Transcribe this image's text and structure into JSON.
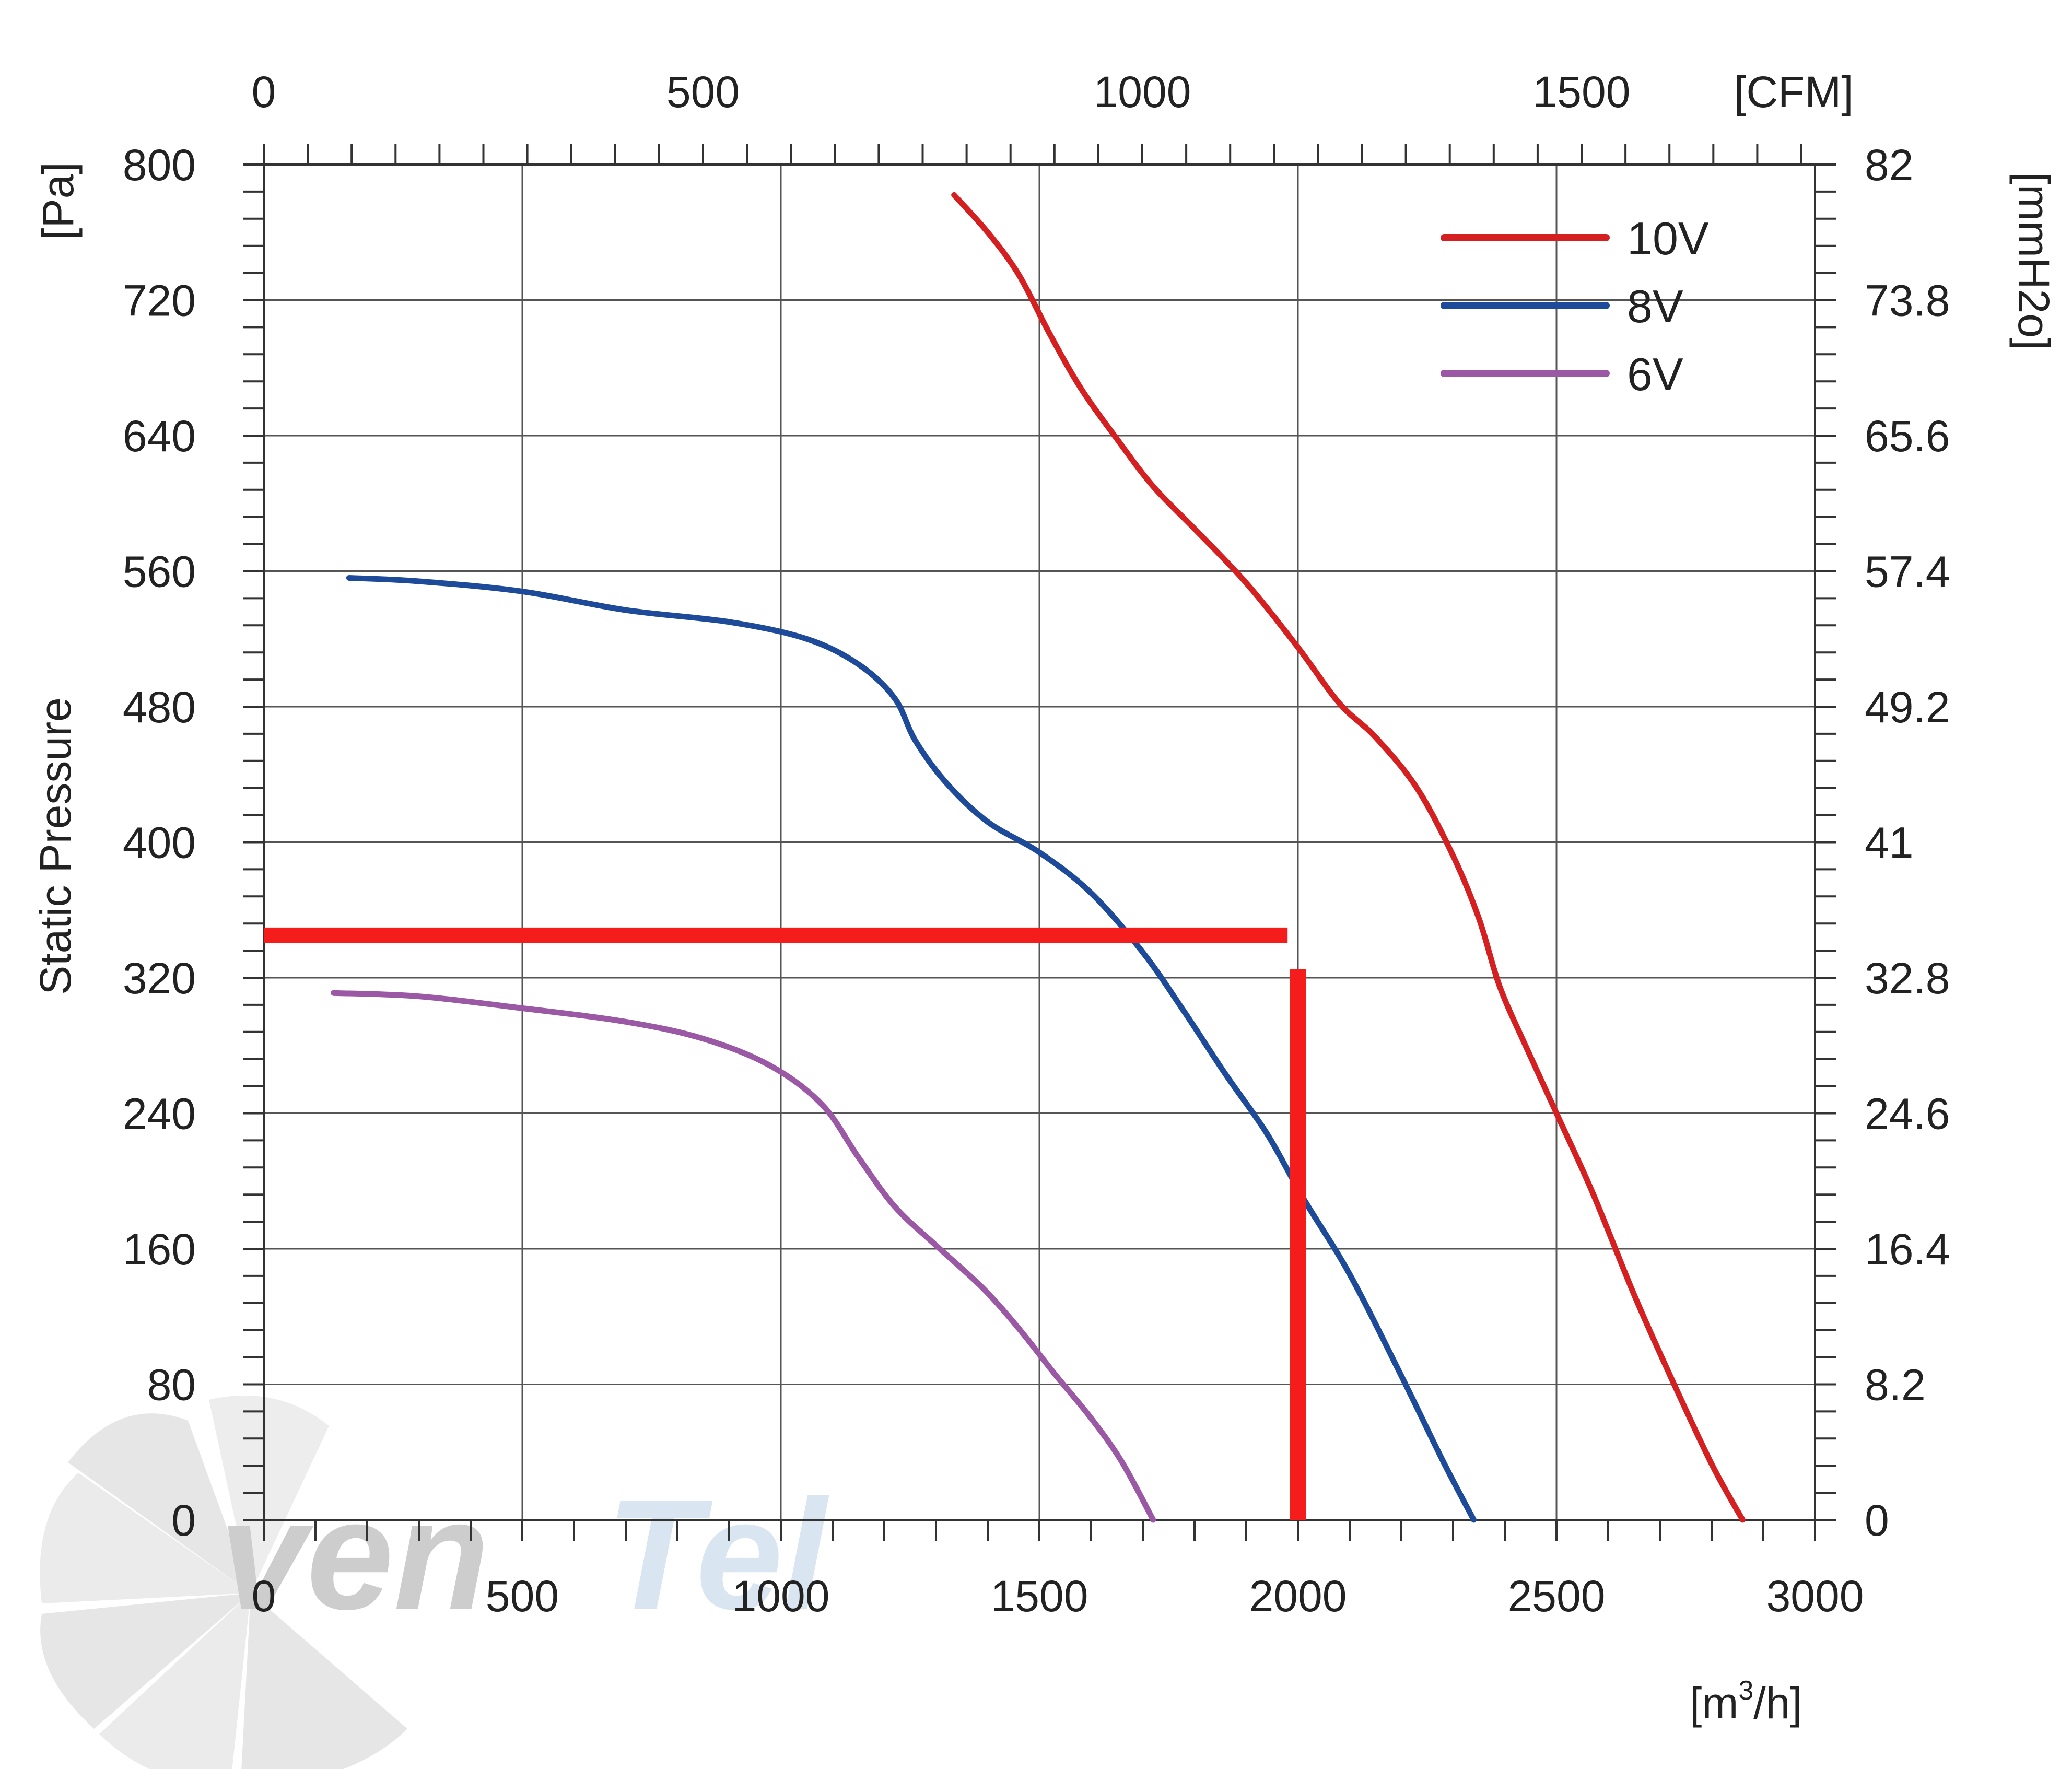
{
  "chart_data": {
    "type": "line",
    "title": "",
    "xlabel": "[m3/h]",
    "xlabel_base": "[m",
    "xlabel_sup": "3",
    "xlabel_tail": "/h]",
    "ylabel": "Static Pressure",
    "ylabel_unit": "[Pa]",
    "y2label_unit": "[mmH2o]",
    "x2label_unit": "[CFM]",
    "xlim": [
      0,
      3000
    ],
    "ylim": [
      0,
      800
    ],
    "x_ticks": [
      "0",
      "500",
      "1000",
      "1500",
      "2000",
      "2500",
      "3000"
    ],
    "x_tick_values": [
      0,
      500,
      1000,
      1500,
      2000,
      2500,
      3000
    ],
    "y_ticks": [
      "0",
      "80",
      "160",
      "240",
      "320",
      "400",
      "480",
      "560",
      "640",
      "720",
      "800"
    ],
    "y_tick_values": [
      0,
      80,
      160,
      240,
      320,
      400,
      480,
      560,
      640,
      720,
      800
    ],
    "y2_ticks": [
      "0",
      "8.2",
      "16.4",
      "24.6",
      "32.8",
      "41",
      "49.2",
      "57.4",
      "65.6",
      "73.8",
      "82"
    ],
    "x2_ticks": [
      "0",
      "500",
      "1000",
      "1500"
    ],
    "x2_tick_cfm": [
      0,
      500,
      1000,
      1500
    ],
    "grid": true,
    "legend_position": "top-right",
    "series": [
      {
        "name": "10V",
        "color": "#d42020",
        "x": [
          1335,
          1400,
          1460,
          1520,
          1580,
          1650,
          1720,
          1800,
          1900,
          2000,
          2080,
          2150,
          2230,
          2300,
          2350,
          2390,
          2440,
          2500,
          2570,
          2650,
          2720,
          2800,
          2860
        ],
        "y": [
          782,
          760,
          735,
          700,
          668,
          638,
          610,
          585,
          553,
          515,
          482,
          462,
          432,
          392,
          355,
          315,
          280,
          240,
          193,
          133,
          85,
          33,
          0
        ]
      },
      {
        "name": "8V",
        "color": "#1e4a9a",
        "x": [
          165,
          300,
          500,
          700,
          900,
          1050,
          1150,
          1220,
          1260,
          1320,
          1400,
          1500,
          1600,
          1700,
          1780,
          1860,
          1940,
          2010,
          2100,
          2200,
          2280,
          2340
        ],
        "y": [
          556,
          554,
          548,
          537,
          530,
          520,
          505,
          485,
          460,
          435,
          412,
          394,
          370,
          335,
          300,
          263,
          228,
          190,
          145,
          85,
          35,
          0
        ]
      },
      {
        "name": "6V",
        "color": "#9b59a5",
        "x": [
          135,
          300,
          500,
          700,
          850,
          980,
          1080,
          1150,
          1220,
          1300,
          1390,
          1460,
          1530,
          1600,
          1660,
          1720
        ],
        "y": [
          311,
          309,
          302,
          294,
          284,
          268,
          245,
          214,
          185,
          162,
          137,
          113,
          86,
          60,
          34,
          0
        ]
      }
    ],
    "annotations": [
      {
        "type": "hline",
        "color": "#f51c1c",
        "y": 345,
        "x_from": 0,
        "x_to": 1980
      },
      {
        "type": "vline",
        "color": "#f51c1c",
        "x": 2000,
        "y_from": 0,
        "y_to": 325
      }
    ],
    "watermark": {
      "text_dark": "ven",
      "text_light": "Tel",
      "dark_color": "#b8b8b8",
      "light_color": "#c9dcec"
    }
  }
}
